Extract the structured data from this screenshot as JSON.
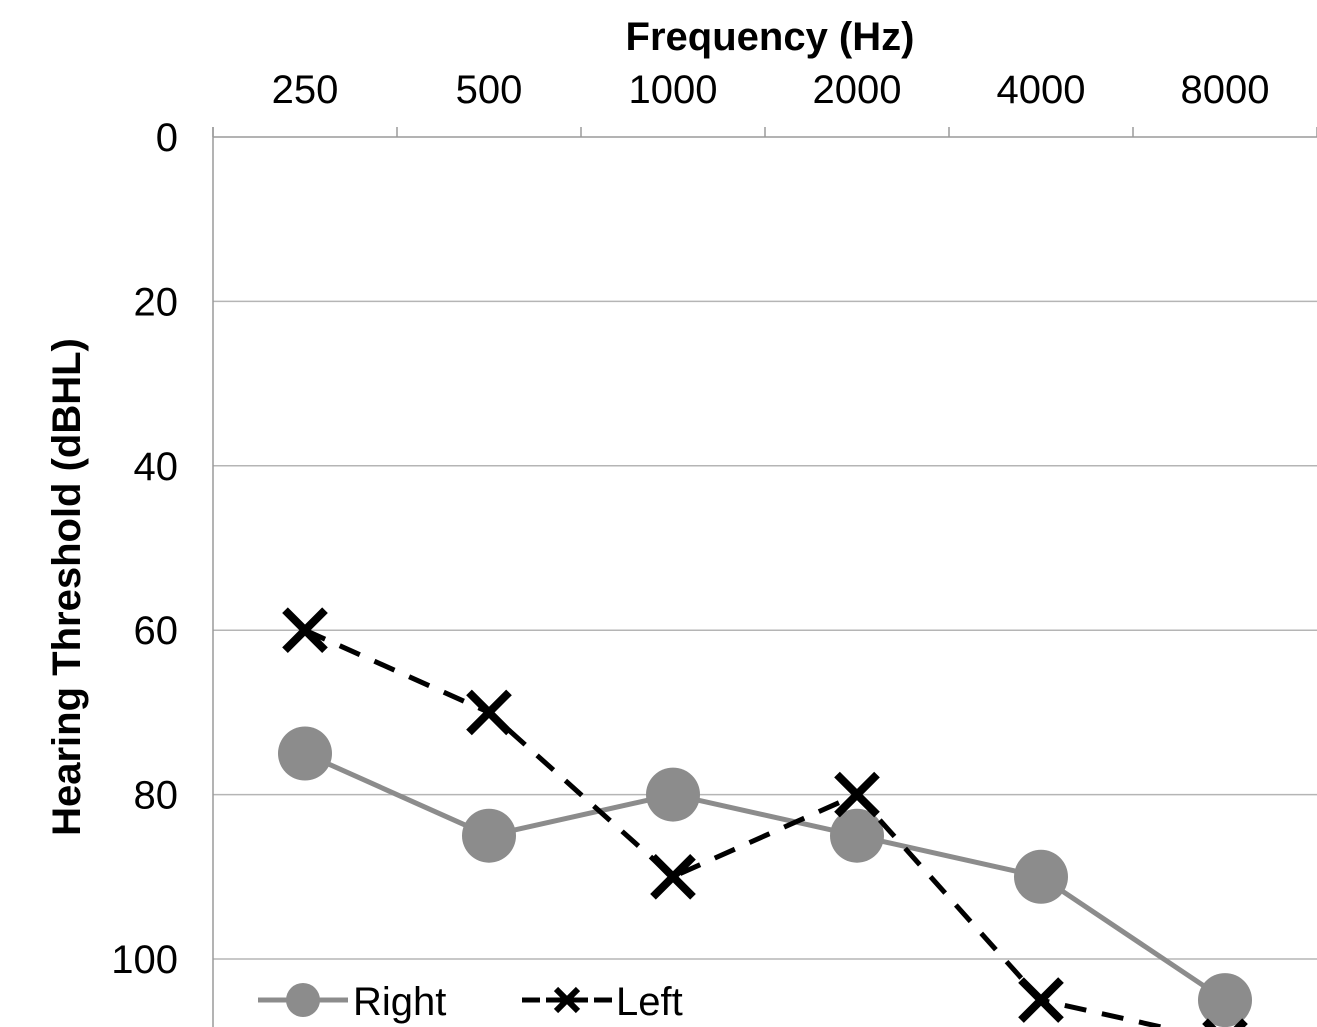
{
  "chart_data": {
    "type": "line",
    "xlabel": "Frequency (Hz)",
    "ylabel": "Hearing Threshold (dBHL)",
    "categories": [
      "250",
      "500",
      "1000",
      "2000",
      "4000",
      "8000"
    ],
    "yticks": [
      "0",
      "20",
      "40",
      "60",
      "80",
      "100"
    ],
    "ylim": [
      0,
      105
    ],
    "y_inverted": true,
    "x_axis_position": "top",
    "grid": true,
    "legend_position": "bottom-left",
    "series": [
      {
        "name": "Right",
        "values": [
          75,
          85,
          80,
          85,
          90,
          105
        ],
        "color": "#8c8c8c",
        "marker": "circle",
        "line": "solid"
      },
      {
        "name": "Left",
        "values": [
          60,
          70,
          90,
          80,
          105,
          110
        ],
        "color": "#000000",
        "marker": "x",
        "line": "dashed"
      }
    ]
  }
}
